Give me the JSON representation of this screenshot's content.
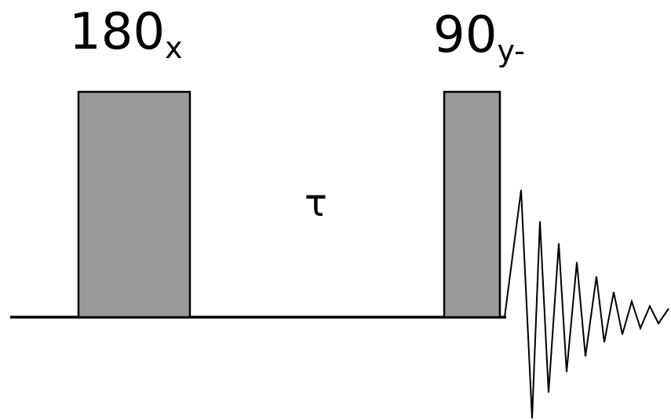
{
  "pulses": [
    {
      "angle": "180",
      "phase": "x"
    },
    {
      "angle": "90",
      "phase": "y-"
    }
  ],
  "delay": {
    "symbol": "τ"
  },
  "colors": {
    "pulse_fill": "#999999",
    "line": "#000000",
    "background": "#ffffff"
  }
}
